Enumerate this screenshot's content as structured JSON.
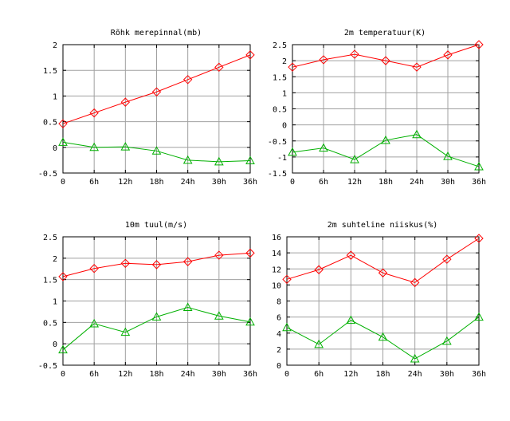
{
  "chart_data": [
    {
      "type": "line",
      "title": "Rõhk merepinnal(mb)",
      "categories": [
        "0",
        "6h",
        "12h",
        "18h",
        "24h",
        "30h",
        "36h"
      ],
      "ylim": [
        -0.5,
        2
      ],
      "yticks": [
        "-0.5",
        "0",
        "0.5",
        "1",
        "1.5",
        "2"
      ],
      "grid": true,
      "series": [
        {
          "color": "#ff0000",
          "marker": "diamond",
          "values": [
            0.46,
            0.67,
            0.88,
            1.08,
            1.32,
            1.56,
            1.8
          ]
        },
        {
          "color": "#00b000",
          "marker": "triangle",
          "values": [
            0.1,
            0.0,
            0.01,
            -0.07,
            -0.25,
            -0.28,
            -0.26
          ]
        }
      ]
    },
    {
      "type": "line",
      "title": "2m temperatuur(K)",
      "categories": [
        "0",
        "6h",
        "12h",
        "18h",
        "24h",
        "30h",
        "36h"
      ],
      "ylim": [
        -1.5,
        2.5
      ],
      "yticks": [
        "-1.5",
        "-1",
        "-0.5",
        "0",
        "0.5",
        "1",
        "1.5",
        "2",
        "2.5"
      ],
      "grid": true,
      "series": [
        {
          "color": "#ff0000",
          "marker": "diamond",
          "values": [
            1.8,
            2.03,
            2.2,
            2.0,
            1.8,
            2.18,
            2.5
          ]
        },
        {
          "color": "#00b000",
          "marker": "triangle",
          "values": [
            -0.85,
            -0.72,
            -1.08,
            -0.48,
            -0.3,
            -0.98,
            -1.3
          ]
        }
      ]
    },
    {
      "type": "line",
      "title": "10m tuul(m/s)",
      "categories": [
        "0",
        "6h",
        "12h",
        "18h",
        "24h",
        "30h",
        "36h"
      ],
      "ylim": [
        -0.5,
        2.5
      ],
      "yticks": [
        "-0.5",
        "0",
        "0.5",
        "1",
        "1.5",
        "2",
        "2.5"
      ],
      "grid": true,
      "series": [
        {
          "color": "#ff0000",
          "marker": "diamond",
          "values": [
            1.57,
            1.76,
            1.88,
            1.85,
            1.92,
            2.07,
            2.12
          ]
        },
        {
          "color": "#00b000",
          "marker": "triangle",
          "values": [
            -0.14,
            0.47,
            0.27,
            0.63,
            0.85,
            0.65,
            0.51
          ]
        }
      ]
    },
    {
      "type": "line",
      "title": "2m suhteline niiskus(%)",
      "categories": [
        "0",
        "6h",
        "12h",
        "18h",
        "24h",
        "30h",
        "36h"
      ],
      "ylim": [
        0,
        16
      ],
      "yticks": [
        "0",
        "2",
        "4",
        "6",
        "8",
        "10",
        "12",
        "14",
        "16"
      ],
      "grid": true,
      "series": [
        {
          "color": "#ff0000",
          "marker": "diamond",
          "values": [
            10.7,
            11.9,
            13.7,
            11.5,
            10.3,
            13.2,
            15.8
          ]
        },
        {
          "color": "#00b000",
          "marker": "triangle",
          "values": [
            4.7,
            2.6,
            5.6,
            3.5,
            0.8,
            3.0,
            6.0
          ]
        }
      ]
    }
  ]
}
